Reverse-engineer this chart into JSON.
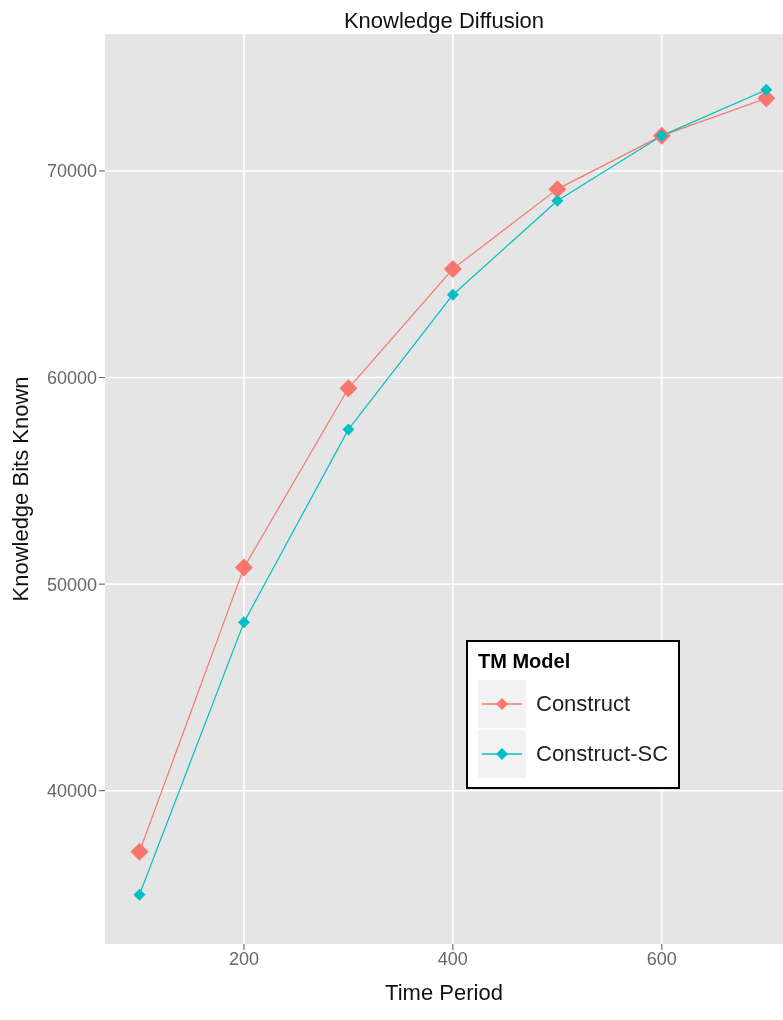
{
  "chart_data": {
    "type": "line",
    "title": "Knowledge Diffusion",
    "xlabel": "Time Period",
    "ylabel": "Knowledge Bits Known",
    "legend_title": "TM Model",
    "x": [
      100,
      200,
      300,
      400,
      500,
      600,
      700
    ],
    "series": [
      {
        "name": "Construct",
        "color": "#f8766d",
        "values": [
          37050,
          50800,
          59480,
          65260,
          69120,
          71710,
          73520
        ]
      },
      {
        "name": "Construct-SC",
        "color": "#00bfc4",
        "values": [
          34960,
          48150,
          57490,
          64010,
          68560,
          71710,
          73930
        ]
      }
    ],
    "xlim": [
      67,
      716
    ],
    "xticks": [
      200,
      400,
      600
    ],
    "ylim": [
      32580,
      76630
    ],
    "yticks": [
      40000,
      50000,
      60000,
      70000
    ],
    "grid": true,
    "legend": "bottom right",
    "marker": "diamond",
    "line_style": "solid"
  }
}
